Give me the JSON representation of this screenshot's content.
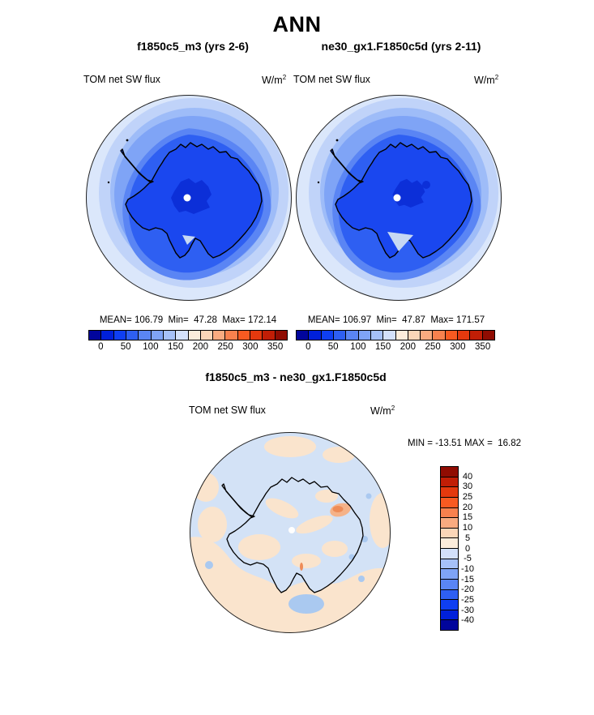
{
  "title": "ANN",
  "panels": {
    "left": {
      "subtitle": "f1850c5_m3 (yrs 2-6)",
      "var_label": "TOM net SW flux",
      "units_base": "W/m",
      "units_exp": "2",
      "stats": "MEAN= 106.79  Min=  47.28  Max= 172.14"
    },
    "right": {
      "subtitle": "ne30_gx1.F1850c5d (yrs 2-11)",
      "var_label": "TOM net SW flux",
      "units_base": "W/m",
      "units_exp": "2",
      "stats": "MEAN= 106.97  Min=  47.87  Max= 171.57"
    },
    "diff": {
      "subtitle": "f1850c5_m3 - ne30_gx1.F1850c5d",
      "var_label": "TOM net SW flux",
      "units_base": "W/m",
      "units_exp": "2",
      "minmax": "MIN = -13.51 MAX =  16.82"
    }
  },
  "colorbar": {
    "colors": [
      "#01059c",
      "#0020da",
      "#0f3ff2",
      "#2e5ff2",
      "#5a85f4",
      "#7fa4f6",
      "#a6c1f8",
      "#d3e0fa",
      "#fcecdb",
      "#fbd6b8",
      "#f9ab80",
      "#f8814e",
      "#f85a21",
      "#e4390e",
      "#c11e06",
      "#900c02"
    ],
    "h_ticks": [
      "0",
      "50",
      "100",
      "150",
      "200",
      "250",
      "300",
      "350"
    ],
    "v_labels": [
      "40",
      "30",
      "25",
      "20",
      "15",
      "10",
      "5",
      "0",
      "-5",
      "-10",
      "-15",
      "-20",
      "-25",
      "-30",
      "-40"
    ]
  },
  "map_palette": {
    "ocean_outer": "#dbe7fb",
    "ocean_ring2": "#c0d3f9",
    "ocean_ring3": "#9ebcf8",
    "ocean_ring4": "#7fa4f6",
    "ocean_ring5": "#5a85f4",
    "ocean_coastal": "#2e5ff2",
    "continent": "#1a47ef",
    "polar_plateau": "#0c2fd8",
    "diff_base_blue": "#d3e2f6",
    "diff_peach": "#fae4cd",
    "diff_orange": "#f5b288",
    "diff_orange_core": "#ee8c58",
    "diff_blue_spot": "#aac9f0"
  },
  "chart_data": [
    {
      "type": "heatmap",
      "subtype": "south-polar-stereographic-contour-map",
      "title": "f1850c5_m3 (yrs 2-6)",
      "season": "ANN",
      "variable": "TOM net SW flux",
      "units": "W/m2",
      "stats": {
        "mean": 106.79,
        "min": 47.28,
        "max": 172.14
      },
      "contour_levels": [
        0,
        25,
        50,
        75,
        100,
        125,
        150,
        175,
        200,
        225,
        250,
        275,
        300,
        325,
        350
      ],
      "legend_ticks": [
        0,
        50,
        100,
        150,
        200,
        250,
        300,
        350
      ],
      "legend_position": "below"
    },
    {
      "type": "heatmap",
      "subtype": "south-polar-stereographic-contour-map",
      "title": "ne30_gx1.F1850c5d (yrs 2-11)",
      "season": "ANN",
      "variable": "TOM net SW flux",
      "units": "W/m2",
      "stats": {
        "mean": 106.97,
        "min": 47.87,
        "max": 171.57
      },
      "contour_levels": [
        0,
        25,
        50,
        75,
        100,
        125,
        150,
        175,
        200,
        225,
        250,
        275,
        300,
        325,
        350
      ],
      "legend_ticks": [
        0,
        50,
        100,
        150,
        200,
        250,
        300,
        350
      ],
      "legend_position": "below"
    },
    {
      "type": "heatmap",
      "subtype": "south-polar-stereographic-contour-map",
      "title": "f1850c5_m3 - ne30_gx1.F1850c5d",
      "season": "ANN",
      "variable": "TOM net SW flux",
      "units": "W/m2",
      "stats": {
        "min": -13.51,
        "max": 16.82
      },
      "contour_levels": [
        -40,
        -30,
        -25,
        -20,
        -15,
        -10,
        -5,
        0,
        5,
        10,
        15,
        20,
        25,
        30,
        40
      ],
      "legend_position": "right"
    }
  ]
}
